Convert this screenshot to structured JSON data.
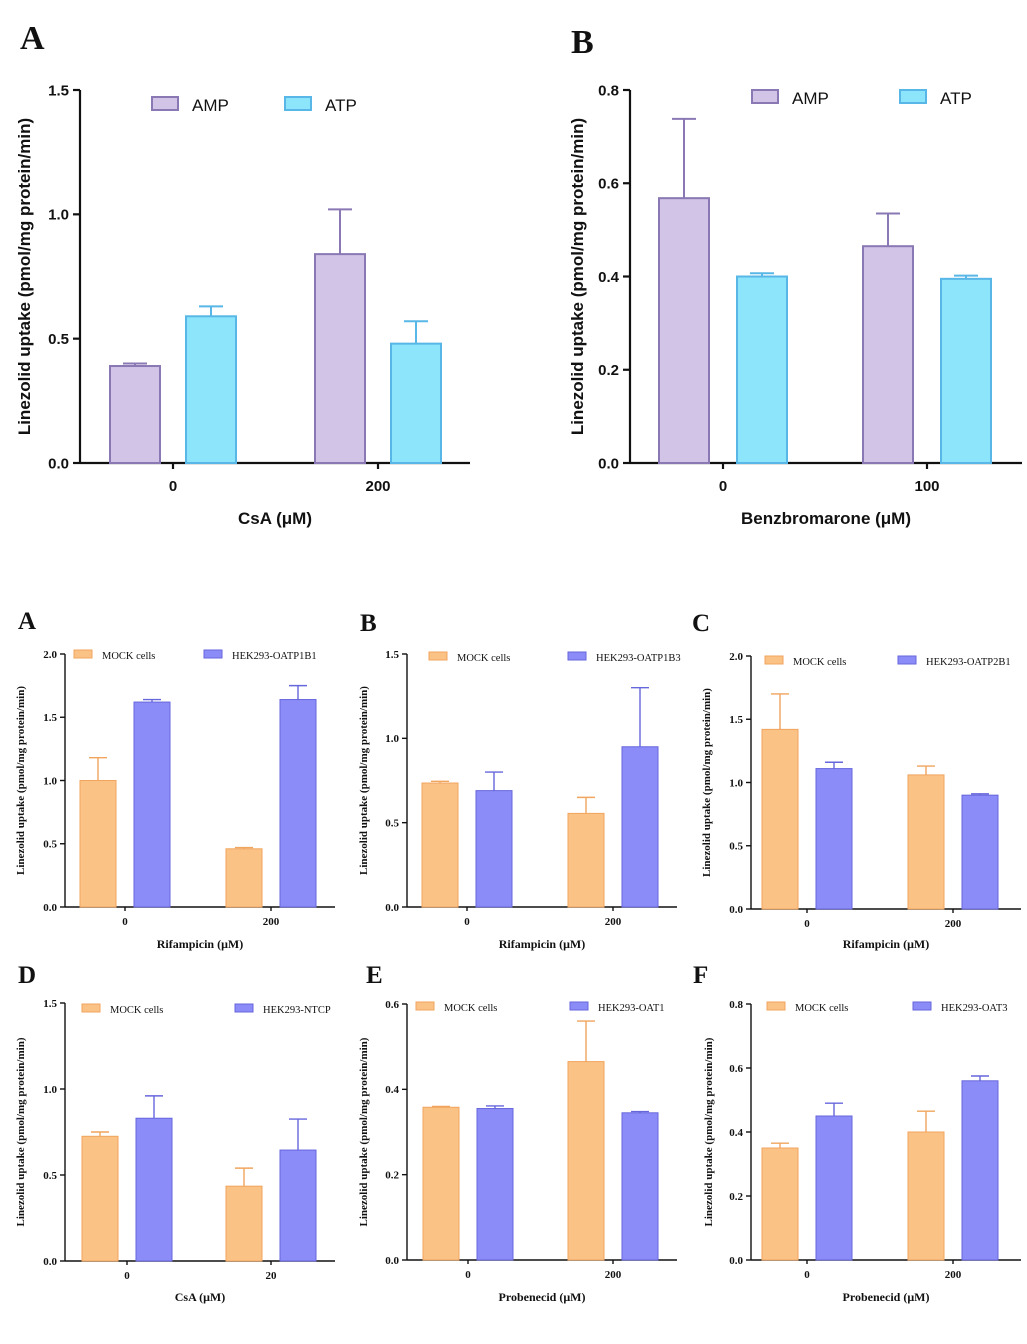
{
  "colors": {
    "amp_fill": "#d1c4e7",
    "amp_stroke": "#8a78b4",
    "atp_fill": "#8ce5fb",
    "atp_stroke": "#58b7e6",
    "mock_fill": "#fbc286",
    "mock_stroke": "#f0a45d",
    "hek_fill": "#8c8cf8",
    "hek_stroke": "#6666dd",
    "axis": "#111111"
  },
  "chart_data": [
    {
      "panel": "A",
      "type": "bar",
      "categories": [
        "0",
        "200"
      ],
      "series": [
        {
          "name": "AMP",
          "values": [
            0.39,
            0.84
          ],
          "errors": [
            0.01,
            0.18
          ]
        },
        {
          "name": "ATP",
          "values": [
            0.59,
            0.48
          ],
          "errors": [
            0.04,
            0.09
          ]
        }
      ],
      "xlabel": "CsA (μM)",
      "ylabel": "Linezolid uptake (pmol/mg protein/min)",
      "ylim": [
        0,
        1.5
      ],
      "yticks": [
        "0.0",
        "0.5",
        "1.0",
        "1.5"
      ]
    },
    {
      "panel": "B",
      "type": "bar",
      "categories": [
        "0",
        "100"
      ],
      "series": [
        {
          "name": "AMP",
          "values": [
            0.568,
            0.465
          ],
          "errors": [
            0.17,
            0.07
          ]
        },
        {
          "name": "ATP",
          "values": [
            0.4,
            0.395
          ],
          "errors": [
            0.007,
            0.007
          ]
        }
      ],
      "xlabel": "Benzbromarone (μM)",
      "ylabel": "Linezolid uptake (pmol/mg protein/min)",
      "ylim": [
        0,
        0.8
      ],
      "yticks": [
        "0.0",
        "0.2",
        "0.4",
        "0.6",
        "0.8"
      ]
    },
    {
      "panel": "A",
      "type": "bar",
      "categories": [
        "0",
        "200"
      ],
      "series": [
        {
          "name": "MOCK cells",
          "values": [
            1.0,
            0.46
          ],
          "errors": [
            0.18,
            0.01
          ]
        },
        {
          "name": "HEK293-OATP1B1",
          "values": [
            1.62,
            1.64
          ],
          "errors": [
            0.02,
            0.11
          ]
        }
      ],
      "xlabel": "Rifampicin (μM)",
      "ylabel": "Linezolid uptake (pmol/mg protein/min)",
      "ylim": [
        0,
        2.0
      ],
      "yticks": [
        "0.0",
        "0.5",
        "1.0",
        "1.5",
        "2.0"
      ]
    },
    {
      "panel": "B",
      "type": "bar",
      "categories": [
        "0",
        "200"
      ],
      "series": [
        {
          "name": "MOCK cells",
          "values": [
            0.735,
            0.555
          ],
          "errors": [
            0.01,
            0.095
          ]
        },
        {
          "name": "HEK293-OATP1B3",
          "values": [
            0.69,
            0.95
          ],
          "errors": [
            0.11,
            0.35
          ]
        }
      ],
      "xlabel": "Rifampicin (μM)",
      "ylabel": "Linezolid uptake (pmol/mg protein/min)",
      "ylim": [
        0,
        1.5
      ],
      "yticks": [
        "0.0",
        "0.5",
        "1.0",
        "1.5"
      ]
    },
    {
      "panel": "C",
      "type": "bar",
      "categories": [
        "0",
        "200"
      ],
      "series": [
        {
          "name": "MOCK cells",
          "values": [
            1.42,
            1.06
          ],
          "errors": [
            0.28,
            0.07
          ]
        },
        {
          "name": "HEK293-OATP2B1",
          "values": [
            1.11,
            0.9
          ],
          "errors": [
            0.05,
            0.01
          ]
        }
      ],
      "xlabel": "Rifampicin (μM)",
      "ylabel": "Linezolid uptake (pmol/mg protein/min)",
      "ylim": [
        0,
        2.0
      ],
      "yticks": [
        "0.0",
        "0.5",
        "1.0",
        "1.5",
        "2.0"
      ]
    },
    {
      "panel": "D",
      "type": "bar",
      "categories": [
        "0",
        "20"
      ],
      "series": [
        {
          "name": "MOCK cells",
          "values": [
            0.725,
            0.435
          ],
          "errors": [
            0.025,
            0.105
          ]
        },
        {
          "name": "HEK293-NTCP",
          "values": [
            0.83,
            0.645
          ],
          "errors": [
            0.13,
            0.18
          ]
        }
      ],
      "xlabel": "CsA (μM)",
      "ylabel": "Linezolid uptake (pmol/mg protein/min)",
      "ylim": [
        0,
        1.5
      ],
      "yticks": [
        "0.0",
        "0.5",
        "1.0",
        "1.5"
      ]
    },
    {
      "panel": "E",
      "type": "bar",
      "categories": [
        "0",
        "200"
      ],
      "series": [
        {
          "name": "MOCK cells",
          "values": [
            0.358,
            0.465
          ],
          "errors": [
            0.002,
            0.095
          ]
        },
        {
          "name": "HEK293-OAT1",
          "values": [
            0.355,
            0.345
          ],
          "errors": [
            0.006,
            0.003
          ]
        }
      ],
      "xlabel": "Probenecid (μM)",
      "ylabel": "Linezolid uptake (pmol/mg protein/min)",
      "ylim": [
        0,
        0.6
      ],
      "yticks": [
        "0.0",
        "0.2",
        "0.4",
        "0.6"
      ]
    },
    {
      "panel": "F",
      "type": "bar",
      "categories": [
        "0",
        "200"
      ],
      "series": [
        {
          "name": "MOCK cells",
          "values": [
            0.35,
            0.4
          ],
          "errors": [
            0.015,
            0.065
          ]
        },
        {
          "name": "HEK293-OAT3",
          "values": [
            0.45,
            0.56
          ],
          "errors": [
            0.04,
            0.015
          ]
        }
      ],
      "xlabel": "Probenecid (μM)",
      "ylabel": "Linezolid uptake (pmol/mg protein/min)",
      "ylim": [
        0,
        0.8
      ],
      "yticks": [
        "0.0",
        "0.2",
        "0.4",
        "0.6",
        "0.8"
      ]
    }
  ]
}
